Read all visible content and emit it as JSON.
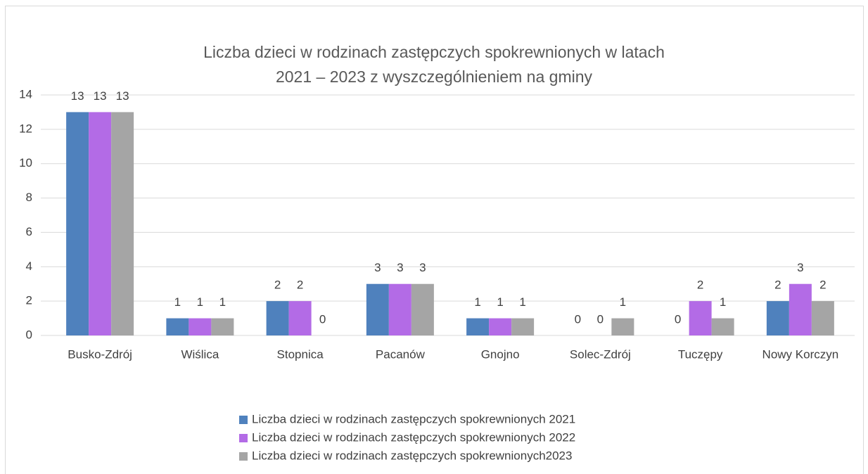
{
  "chart_data": {
    "type": "bar",
    "title": [
      "Liczba dzieci w rodzinach zastępczych spokrewnionych w latach",
      "2021 – 2023 z wyszczególnieniem na gminy"
    ],
    "categories": [
      "Busko-Zdrój",
      "Wiślica",
      "Stopnica",
      "Pacanów",
      "Gnojno",
      "Solec-Zdrój",
      "Tuczępy",
      "Nowy Korczyn"
    ],
    "series": [
      {
        "name": "Liczba dzieci w rodzinach zastępczych spokrewnionych 2021",
        "color": "#4f81bd",
        "values": [
          13,
          1,
          2,
          3,
          1,
          0,
          0,
          2
        ]
      },
      {
        "name": "Liczba dzieci w rodzinach zastępczych spokrewnionych 2022",
        "color": "#b36be6",
        "values": [
          13,
          1,
          2,
          3,
          1,
          0,
          2,
          3
        ]
      },
      {
        "name": "Liczba dzieci w rodzinach zastępczych spokrewnionych2023",
        "color": "#a5a5a5",
        "values": [
          13,
          1,
          0,
          3,
          1,
          1,
          1,
          2
        ]
      }
    ],
    "ylim": [
      0,
      14
    ],
    "yticks": [
      0,
      2,
      4,
      6,
      8,
      10,
      12,
      14
    ],
    "grid": true,
    "legend": "bottom"
  }
}
